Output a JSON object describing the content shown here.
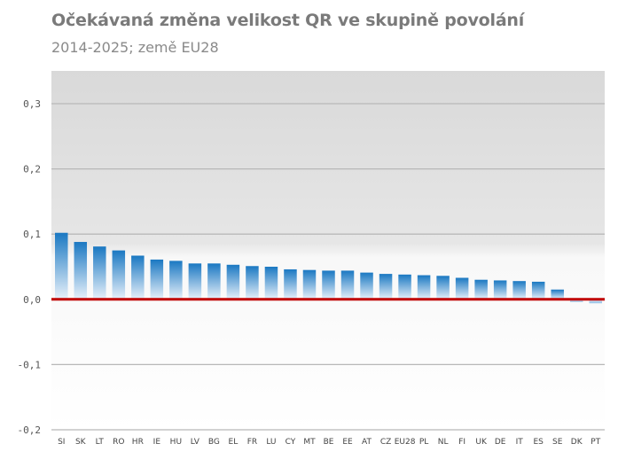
{
  "chart_data": {
    "type": "bar",
    "title": "Očekávaná změna velikost QR ve skupině povolání",
    "subtitle": "2014-2025; země EU28",
    "categories": [
      "SI",
      "SK",
      "LT",
      "RO",
      "HR",
      "IE",
      "HU",
      "LV",
      "BG",
      "EL",
      "FR",
      "LU",
      "CY",
      "MT",
      "BE",
      "EE",
      "AT",
      "CZ",
      "EU28",
      "PL",
      "NL",
      "FI",
      "UK",
      "DE",
      "IT",
      "ES",
      "SE",
      "DK",
      "PT"
    ],
    "values": [
      0.102,
      0.088,
      0.081,
      0.075,
      0.067,
      0.061,
      0.059,
      0.055,
      0.055,
      0.053,
      0.051,
      0.05,
      0.046,
      0.045,
      0.044,
      0.044,
      0.041,
      0.039,
      0.038,
      0.037,
      0.036,
      0.033,
      0.03,
      0.029,
      0.028,
      0.027,
      0.015,
      -0.004,
      -0.006
    ],
    "ylim": [
      -0.2,
      0.35
    ],
    "yticks": [
      0.3,
      0.2,
      0.1,
      0.0,
      -0.1,
      -0.2
    ],
    "ytick_labels": [
      "0,3",
      "0,2",
      "0,1",
      "0,0",
      "-0,1",
      "-0,2"
    ],
    "xlabel": "",
    "ylabel": "",
    "grid": true,
    "colors": {
      "bar_top": "#1a78c2",
      "bar_bottom": "#e8f1fa",
      "zero_line": "#c00000",
      "grid": "#b8b8b8",
      "plot_bg_top": "#d9d9d9",
      "plot_bg_bottom": "#ffffff"
    }
  }
}
